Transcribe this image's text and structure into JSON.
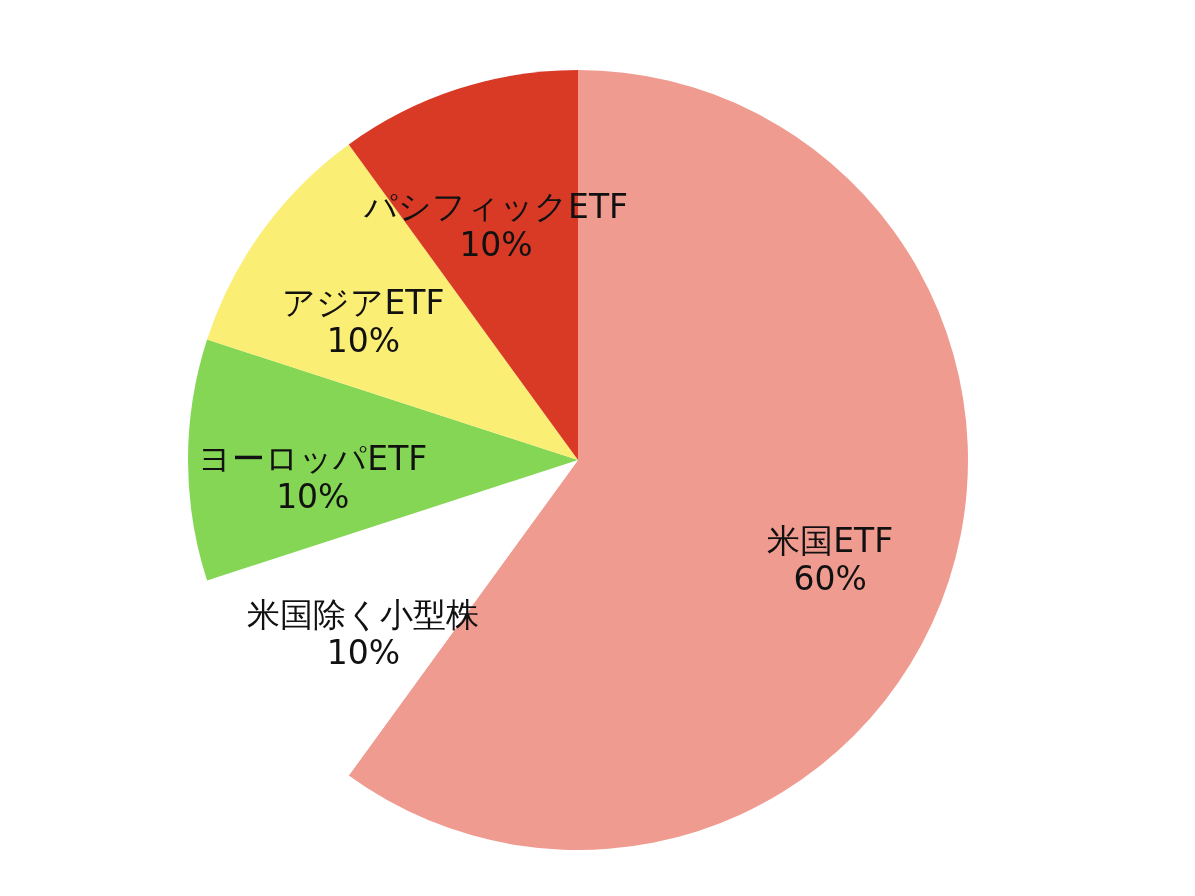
{
  "chart_data": {
    "type": "pie",
    "categories": [
      "米国ETF",
      "米国除く小型株",
      "ヨーロッパETF",
      "アジアETF",
      "パシフィックETF"
    ],
    "values": [
      60,
      10,
      10,
      10,
      10
    ],
    "colors": [
      "#ef9b90",
      "#ffffff",
      "#84d654",
      "#fbee74",
      "#d83a26"
    ],
    "value_labels": [
      "60%",
      "10%",
      "10%",
      "10%",
      "10%"
    ]
  }
}
